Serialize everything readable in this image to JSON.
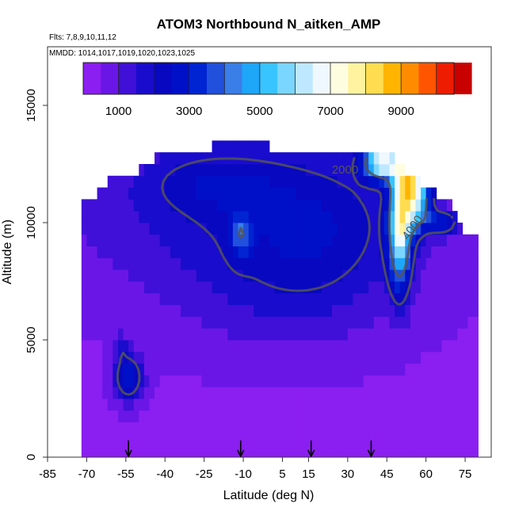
{
  "chart_data": {
    "type": "heatmap",
    "title": "ATOM3 Northbound N_aitken_AMP",
    "flights_line": "Flts: 7,8,9,10,11,12",
    "dates_line": "MMDD: 1014,1017,1019,1020,1023,1025",
    "xlabel": "Latitude (deg N)",
    "ylabel": "Altitude (m)",
    "xlim": [
      -85,
      85
    ],
    "ylim": [
      0,
      17500
    ],
    "x_ticks": [
      -85,
      -70,
      -55,
      -40,
      -25,
      -10,
      5,
      15,
      30,
      45,
      60,
      75
    ],
    "y_ticks": [
      0,
      5000,
      10000,
      15000
    ],
    "colorbar": {
      "min": 0,
      "max": 10500,
      "step": 500,
      "tick_values": [
        1000,
        3000,
        5000,
        7000,
        9000
      ],
      "colors": [
        "#8b1ef0",
        "#6a16e6",
        "#4010d8",
        "#1a0ccc",
        "#0808c0",
        "#0010c8",
        "#0024d2",
        "#2050dc",
        "#3a7ee8",
        "#1ea6f8",
        "#38c4ff",
        "#7ad6ff",
        "#bde8ff",
        "#f0f8ff",
        "#fffde0",
        "#fff3a0",
        "#ffdc50",
        "#ffb400",
        "#ff8c00",
        "#ff5500",
        "#ee1c00",
        "#c80000"
      ],
      "extend_color": "#aa1c1c"
    },
    "contour_levels": [
      2000,
      4000
    ],
    "contour_labels": [
      "2000",
      "4000"
    ],
    "flight_markers_lat": [
      -54,
      -11,
      16,
      39
    ],
    "field": {
      "background_value": 400,
      "blobs": [
        {
          "lat": -8,
          "alt": 10500,
          "sx": 48,
          "sy": 2600,
          "amp": 1500
        },
        {
          "lat": 20,
          "alt": 9500,
          "sx": 22,
          "sy": 2200,
          "amp": 900
        },
        {
          "lat": -22,
          "alt": 11800,
          "sx": 18,
          "sy": 900,
          "amp": 900
        },
        {
          "lat": 5,
          "alt": 6500,
          "sx": 30,
          "sy": 1800,
          "amp": 600
        },
        {
          "lat": -54,
          "alt": 3400,
          "sx": 4,
          "sy": 700,
          "amp": 2700
        },
        {
          "lat": 50,
          "alt": 9800,
          "sx": 3,
          "sy": 1800,
          "amp": 5500
        },
        {
          "lat": 43,
          "alt": 12600,
          "sx": 5,
          "sy": 500,
          "amp": 5800
        },
        {
          "lat": 55,
          "alt": 11900,
          "sx": 4,
          "sy": 700,
          "amp": 5500
        },
        {
          "lat": 56,
          "alt": 10600,
          "sx": 4,
          "sy": 700,
          "amp": 3800
        },
        {
          "lat": 66,
          "alt": 10000,
          "sx": 4,
          "sy": 300,
          "amp": 2500
        },
        {
          "lat": -11,
          "alt": 9500,
          "sx": 3,
          "sy": 700,
          "amp": 1800
        },
        {
          "lat": -57,
          "alt": 4700,
          "sx": 2,
          "sy": 400,
          "amp": 1000
        }
      ],
      "coverage": {
        "lat_min": -72,
        "lat_max": 79,
        "alt_min": 0,
        "top_profile_lat": [
          -72,
          -67,
          -62,
          -50,
          -45,
          -33,
          -25,
          -15,
          -10,
          0,
          30,
          40,
          45,
          55,
          68,
          70,
          75
        ],
        "top_profile_alt": [
          10500,
          11000,
          11500,
          12000,
          12500,
          12800,
          12900,
          13200,
          13500,
          13000,
          12900,
          12900,
          12800,
          11700,
          10700,
          10400,
          9200
        ]
      }
    }
  }
}
